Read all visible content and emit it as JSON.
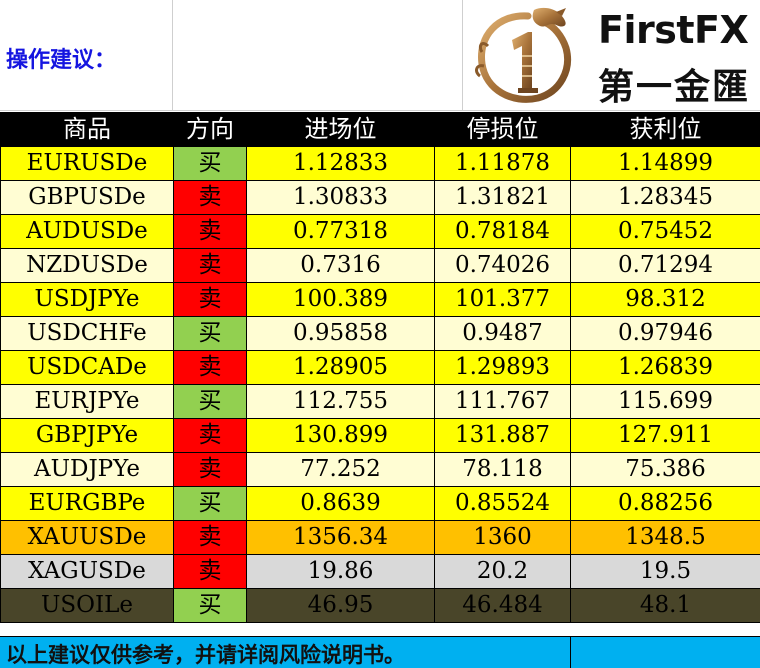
{
  "header": {
    "title": "操作建议：",
    "brand_en": "FirstFX",
    "brand_cn": "第一金匯",
    "logo_icon": "dragon-1-logo-icon"
  },
  "columns": [
    "商品",
    "方向",
    "进场位",
    "停损位",
    "获利位"
  ],
  "rows": [
    {
      "symbol": "EURUSDe",
      "direction": "买",
      "entry": "1.12833",
      "stop": "1.11878",
      "target": "1.14899",
      "style": "yellow",
      "dir_type": "buy"
    },
    {
      "symbol": "GBPUSDe",
      "direction": "卖",
      "entry": "1.30833",
      "stop": "1.31821",
      "target": "1.28345",
      "style": "cream",
      "dir_type": "sell"
    },
    {
      "symbol": "AUDUSDe",
      "direction": "卖",
      "entry": "0.77318",
      "stop": "0.78184",
      "target": "0.75452",
      "style": "yellow",
      "dir_type": "sell"
    },
    {
      "symbol": "NZDUSDe",
      "direction": "卖",
      "entry": "0.7316",
      "stop": "0.74026",
      "target": "0.71294",
      "style": "cream",
      "dir_type": "sell"
    },
    {
      "symbol": "USDJPYe",
      "direction": "卖",
      "entry": "100.389",
      "stop": "101.377",
      "target": "98.312",
      "style": "yellow",
      "dir_type": "sell"
    },
    {
      "symbol": "USDCHFe",
      "direction": "买",
      "entry": "0.95858",
      "stop": "0.9487",
      "target": "0.97946",
      "style": "cream",
      "dir_type": "buy"
    },
    {
      "symbol": "USDCADe",
      "direction": "卖",
      "entry": "1.28905",
      "stop": "1.29893",
      "target": "1.26839",
      "style": "yellow",
      "dir_type": "sell"
    },
    {
      "symbol": "EURJPYe",
      "direction": "买",
      "entry": "112.755",
      "stop": "111.767",
      "target": "115.699",
      "style": "cream",
      "dir_type": "buy"
    },
    {
      "symbol": "GBPJPYe",
      "direction": "卖",
      "entry": "130.899",
      "stop": "131.887",
      "target": "127.911",
      "style": "yellow",
      "dir_type": "sell"
    },
    {
      "symbol": "AUDJPYe",
      "direction": "卖",
      "entry": "77.252",
      "stop": "78.118",
      "target": "75.386",
      "style": "cream",
      "dir_type": "sell"
    },
    {
      "symbol": "EURGBPe",
      "direction": "买",
      "entry": "0.8639",
      "stop": "0.85524",
      "target": "0.88256",
      "style": "yellow",
      "dir_type": "buy"
    },
    {
      "symbol": "XAUUSDe",
      "direction": "卖",
      "entry": "1356.34",
      "stop": "1360",
      "target": "1348.5",
      "style": "orange",
      "dir_type": "sell"
    },
    {
      "symbol": "XAGUSDe",
      "direction": "卖",
      "entry": "19.86",
      "stop": "20.2",
      "target": "19.5",
      "style": "gray",
      "dir_type": "sell"
    },
    {
      "symbol": "USOILe",
      "direction": "买",
      "entry": "46.95",
      "stop": "46.484",
      "target": "48.1",
      "style": "dark",
      "dir_type": "buy"
    }
  ],
  "colors": {
    "buy": "#92d050",
    "sell": "#ff0000",
    "yellow": "#ffff00",
    "cream": "#fffdd3",
    "orange": "#ffc000",
    "gray": "#d9d9d9",
    "dark": "#494529",
    "footer": "#00b0f0",
    "title": "#1515e0"
  },
  "footer": {
    "disclaimer": "以上建议仅供参考，并请详阅风险说明书。"
  }
}
